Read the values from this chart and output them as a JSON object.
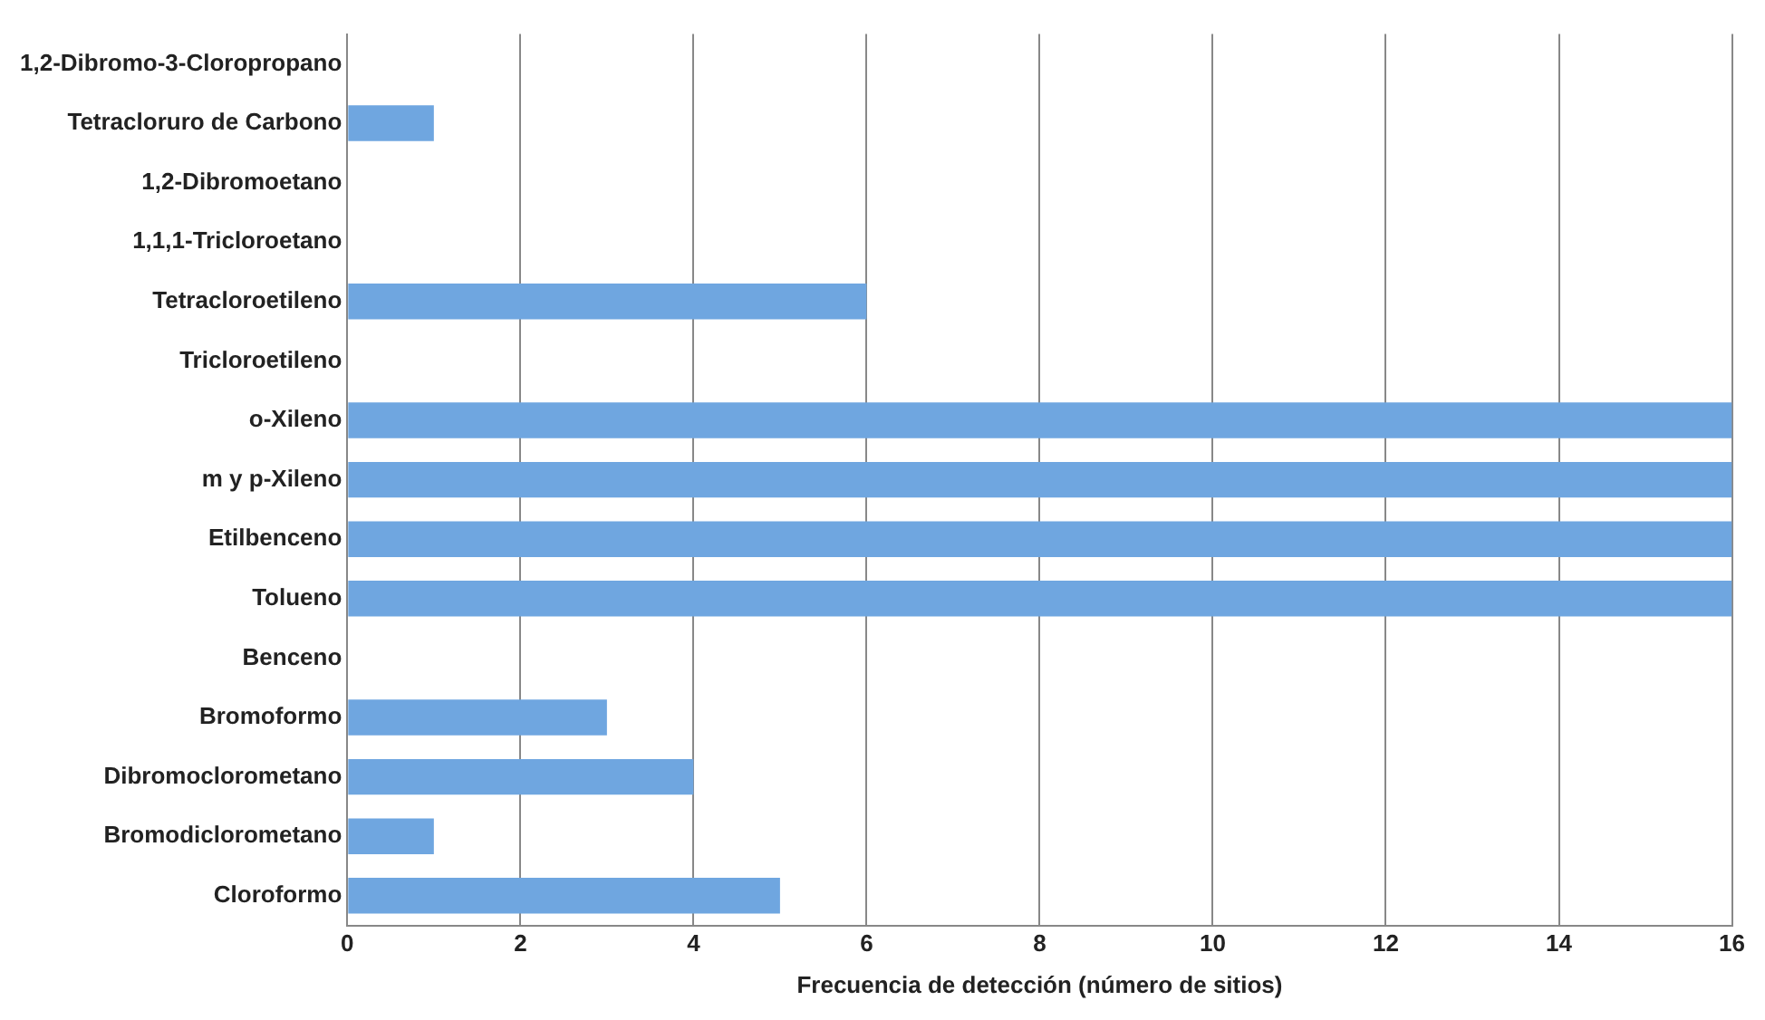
{
  "chart_data": {
    "type": "bar",
    "orientation": "horizontal",
    "xlabel": "Frecuencia de detección (número de sitios)",
    "categories": [
      "1,2-Dibromo-3-Cloropropano",
      "Tetracloruro de Carbono",
      "1,2-Dibromoetano",
      "1,1,1-Tricloroetano",
      "Tetracloroetileno",
      "Tricloroetileno",
      "o-Xileno",
      "m y p-Xileno",
      "Etilbenceno",
      "Tolueno",
      "Benceno",
      "Bromoformo",
      "Dibromoclorometano",
      "Bromodiclorometano",
      "Cloroformo"
    ],
    "values": [
      0,
      1,
      0,
      0,
      6,
      0,
      16,
      16,
      16,
      16,
      0,
      3,
      4,
      1,
      5
    ],
    "color": "#6fa6e0",
    "xlim": [
      0,
      16
    ],
    "xticks": [
      0,
      2,
      4,
      6,
      8,
      10,
      12,
      14,
      16
    ],
    "grid": "x",
    "legend": false
  }
}
